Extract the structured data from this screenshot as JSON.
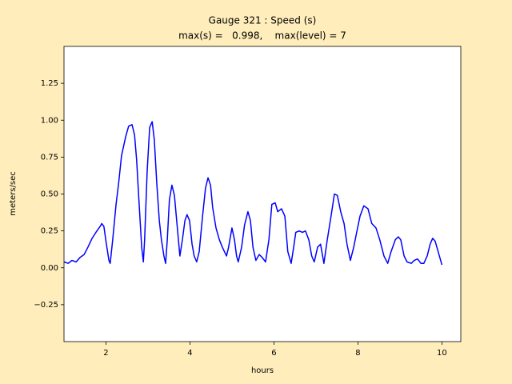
{
  "chart_data": {
    "type": "line",
    "title": "Gauge 321 : Speed (s)",
    "subtitle": "max(s) =   0.998,    max(level) = 7",
    "x_label": "hours",
    "y_label": "meters/sec",
    "color": "#0000ff",
    "grid": false,
    "xlim": [
      1,
      10.45
    ],
    "ylim": [
      -0.5,
      1.5
    ],
    "xticks": [
      2,
      4,
      6,
      8,
      10
    ],
    "yticks": [
      {
        "value": -0.25,
        "label": "−0.25"
      },
      {
        "value": 0,
        "label": "0.00"
      },
      {
        "value": 0.25,
        "label": "0.25"
      },
      {
        "value": 0.5,
        "label": "0.50"
      },
      {
        "value": 0.75,
        "label": "0.75"
      },
      {
        "value": 1,
        "label": "1.00"
      },
      {
        "value": 1.25,
        "label": "1.25"
      }
    ],
    "x": [
      1.0,
      1.1,
      1.19,
      1.29,
      1.38,
      1.48,
      1.57,
      1.67,
      1.76,
      1.86,
      1.9,
      1.95,
      2.01,
      2.07,
      2.1,
      2.16,
      2.24,
      2.3,
      2.37,
      2.47,
      2.54,
      2.62,
      2.68,
      2.73,
      2.79,
      2.85,
      2.89,
      2.92,
      2.98,
      3.04,
      3.1,
      3.15,
      3.21,
      3.27,
      3.32,
      3.38,
      3.42,
      3.46,
      3.51,
      3.57,
      3.63,
      3.69,
      3.76,
      3.82,
      3.88,
      3.93,
      3.99,
      4.05,
      4.1,
      4.16,
      4.22,
      4.3,
      4.37,
      4.43,
      4.49,
      4.54,
      4.62,
      4.7,
      4.77,
      4.87,
      4.92,
      5.0,
      5.06,
      5.11,
      5.15,
      5.23,
      5.3,
      5.38,
      5.44,
      5.5,
      5.57,
      5.65,
      5.72,
      5.8,
      5.88,
      5.95,
      6.03,
      6.09,
      6.18,
      6.26,
      6.33,
      6.41,
      6.47,
      6.52,
      6.6,
      6.68,
      6.75,
      6.83,
      6.9,
      6.96,
      7.04,
      7.11,
      7.19,
      7.27,
      7.36,
      7.44,
      7.51,
      7.59,
      7.67,
      7.74,
      7.82,
      7.9,
      7.97,
      8.05,
      8.14,
      8.24,
      8.33,
      8.43,
      8.52,
      8.62,
      8.71,
      8.79,
      8.89,
      8.96,
      9.02,
      9.1,
      9.17,
      9.27,
      9.34,
      9.42,
      9.5,
      9.57,
      9.65,
      9.72,
      9.78,
      9.84,
      9.91,
      10.0
    ],
    "values": [
      0.04,
      0.03,
      0.05,
      0.04,
      0.07,
      0.09,
      0.14,
      0.2,
      0.24,
      0.28,
      0.3,
      0.28,
      0.16,
      0.05,
      0.03,
      0.19,
      0.43,
      0.57,
      0.76,
      0.89,
      0.96,
      0.97,
      0.9,
      0.73,
      0.43,
      0.14,
      0.04,
      0.19,
      0.65,
      0.95,
      0.99,
      0.87,
      0.57,
      0.32,
      0.19,
      0.08,
      0.03,
      0.19,
      0.46,
      0.56,
      0.49,
      0.3,
      0.08,
      0.19,
      0.32,
      0.36,
      0.32,
      0.16,
      0.08,
      0.04,
      0.11,
      0.35,
      0.54,
      0.61,
      0.56,
      0.41,
      0.27,
      0.19,
      0.14,
      0.08,
      0.14,
      0.27,
      0.19,
      0.08,
      0.04,
      0.14,
      0.29,
      0.38,
      0.32,
      0.14,
      0.05,
      0.09,
      0.07,
      0.04,
      0.19,
      0.43,
      0.44,
      0.38,
      0.4,
      0.35,
      0.11,
      0.03,
      0.14,
      0.24,
      0.25,
      0.24,
      0.25,
      0.19,
      0.08,
      0.04,
      0.14,
      0.16,
      0.03,
      0.19,
      0.35,
      0.5,
      0.49,
      0.38,
      0.3,
      0.16,
      0.05,
      0.14,
      0.24,
      0.35,
      0.42,
      0.4,
      0.3,
      0.27,
      0.19,
      0.08,
      0.03,
      0.11,
      0.19,
      0.21,
      0.19,
      0.08,
      0.04,
      0.03,
      0.05,
      0.06,
      0.03,
      0.03,
      0.08,
      0.16,
      0.2,
      0.18,
      0.11,
      0.02
    ]
  }
}
